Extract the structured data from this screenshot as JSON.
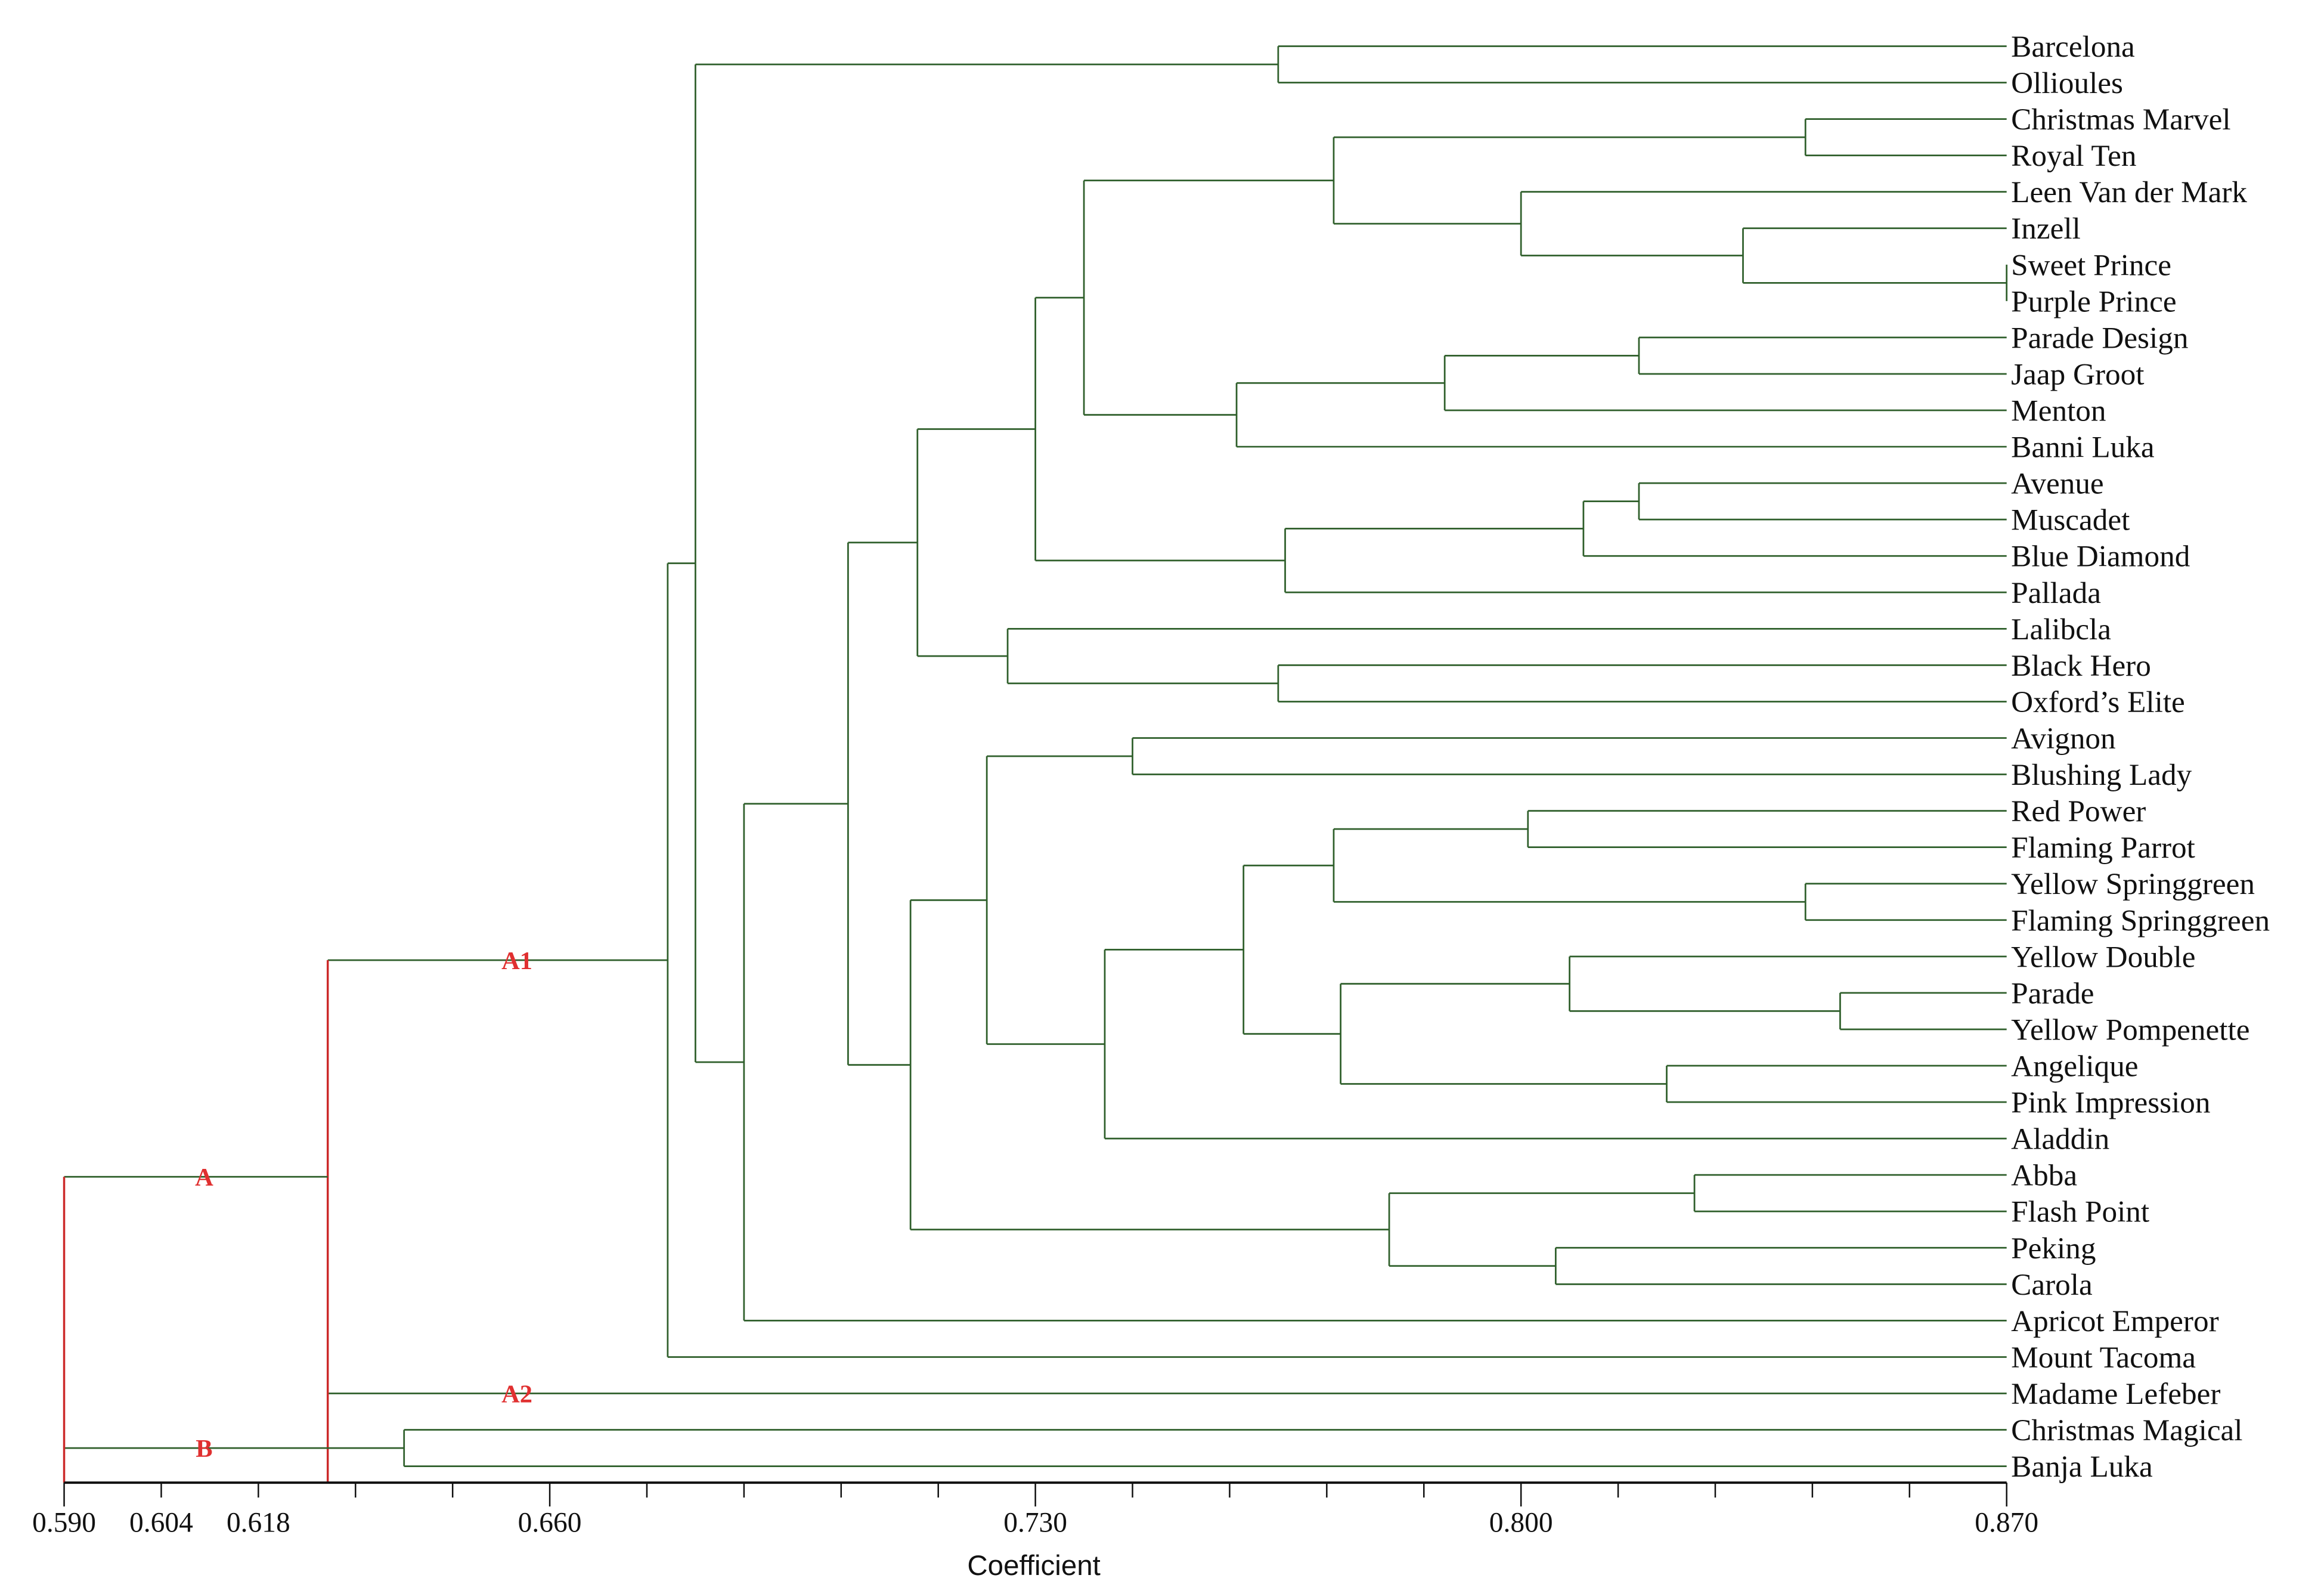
{
  "chart_data": {
    "type": "dendrogram",
    "title": "",
    "xlabel": "Coefficient",
    "xlim": [
      0.59,
      0.87
    ],
    "tick_step": 0.014,
    "tick_labels": [
      "0.590",
      "0.604",
      "0.618",
      "0.660",
      "0.730",
      "0.800",
      "0.870"
    ],
    "leaves": [
      "Barcelona",
      "Ollioules",
      "Christmas Marvel",
      "Royal Ten",
      "Leen Van der Mark",
      "Inzell",
      "Sweet Prince",
      "Purple Prince",
      "Parade Design",
      "Jaap Groot",
      "Menton",
      "Banni Luka",
      "Avenue",
      "Muscadet",
      "Blue Diamond",
      "Pallada",
      "Lalibcla",
      "Black Hero",
      "Oxford’s Elite",
      "Avignon",
      "Blushing Lady",
      "Red Power",
      "Flaming Parrot",
      "Yellow Springgreen",
      "Flaming Springgreen",
      "Yellow Double",
      "Parade",
      "Yellow Pompenette",
      "Angelique",
      "Pink Impression",
      "Aladdin",
      "Abba",
      "Flash Point",
      "Peking",
      "Carola",
      "Apricot Emperor",
      "Mount Tacoma",
      "Madame Lefeber",
      "Christmas Magical",
      "Banja Luka"
    ],
    "tree": {
      "h": 0.59,
      "hl": true,
      "c": [
        {
          "h": 0.628,
          "hl": true,
          "label": "A",
          "c": [
            {
              "h": 0.677,
              "label": "A1",
              "c": [
                {
                  "h": 0.681,
                  "c": [
                    {
                      "h": 0.765,
                      "c": [
                        0,
                        1
                      ]
                    },
                    {
                      "h": 0.688,
                      "c": [
                        {
                          "h": 0.703,
                          "c": [
                            {
                              "h": 0.713,
                              "c": [
                                {
                                  "h": 0.73,
                                  "c": [
                                    {
                                      "h": 0.737,
                                      "c": [
                                        {
                                          "h": 0.773,
                                          "c": [
                                            {
                                              "h": 0.841,
                                              "c": [
                                                2,
                                                3
                                              ]
                                            },
                                            {
                                              "h": 0.8,
                                              "c": [
                                                4,
                                                {
                                                  "h": 0.832,
                                                  "c": [
                                                    5,
                                                    {
                                                      "h": 0.87,
                                                      "c": [
                                                        6,
                                                        7
                                                      ]
                                                    }
                                                  ]
                                                }
                                              ]
                                            }
                                          ]
                                        },
                                        {
                                          "h": 0.759,
                                          "c": [
                                            {
                                              "h": 0.789,
                                              "c": [
                                                {
                                                  "h": 0.817,
                                                  "c": [
                                                    8,
                                                    9
                                                  ]
                                                },
                                                10
                                              ]
                                            },
                                            11
                                          ]
                                        }
                                      ]
                                    },
                                    {
                                      "h": 0.766,
                                      "c": [
                                        {
                                          "h": 0.809,
                                          "c": [
                                            {
                                              "h": 0.817,
                                              "c": [
                                                12,
                                                13
                                              ]
                                            },
                                            14
                                          ]
                                        },
                                        15
                                      ]
                                    }
                                  ]
                                },
                                {
                                  "h": 0.726,
                                  "c": [
                                    16,
                                    {
                                      "h": 0.765,
                                      "c": [
                                        17,
                                        18
                                      ]
                                    }
                                  ]
                                }
                              ]
                            },
                            {
                              "h": 0.712,
                              "c": [
                                {
                                  "h": 0.723,
                                  "c": [
                                    {
                                      "h": 0.744,
                                      "c": [
                                        19,
                                        20
                                      ]
                                    },
                                    {
                                      "h": 0.74,
                                      "c": [
                                        {
                                          "h": 0.76,
                                          "c": [
                                            {
                                              "h": 0.773,
                                              "c": [
                                                {
                                                  "h": 0.801,
                                                  "c": [
                                                    21,
                                                    22
                                                  ]
                                                },
                                                {
                                                  "h": 0.841,
                                                  "c": [
                                                    23,
                                                    24
                                                  ]
                                                }
                                              ]
                                            },
                                            {
                                              "h": 0.774,
                                              "c": [
                                                {
                                                  "h": 0.807,
                                                  "c": [
                                                    25,
                                                    {
                                                      "h": 0.846,
                                                      "c": [
                                                        26,
                                                        27
                                                      ]
                                                    }
                                                  ]
                                                },
                                                {
                                                  "h": 0.821,
                                                  "c": [
                                                    28,
                                                    29
                                                  ]
                                                }
                                              ]
                                            }
                                          ]
                                        },
                                        30
                                      ]
                                    }
                                  ]
                                },
                                {
                                  "h": 0.781,
                                  "c": [
                                    {
                                      "h": 0.825,
                                      "c": [
                                        31,
                                        32
                                      ]
                                    },
                                    {
                                      "h": 0.805,
                                      "c": [
                                        33,
                                        34
                                      ]
                                    }
                                  ]
                                }
                              ]
                            }
                          ]
                        },
                        35
                      ]
                    }
                  ]
                },
                36
              ]
            },
            {
              "leaf": 37,
              "label": "A2"
            }
          ]
        },
        {
          "h": 0.639,
          "label": "B",
          "c": [
            38,
            39
          ]
        }
      ]
    },
    "colors": {
      "branch": "#2f5f2b",
      "highlight": "#cc2a2a",
      "clade_label": "#e03030",
      "axis": "#111111"
    }
  }
}
